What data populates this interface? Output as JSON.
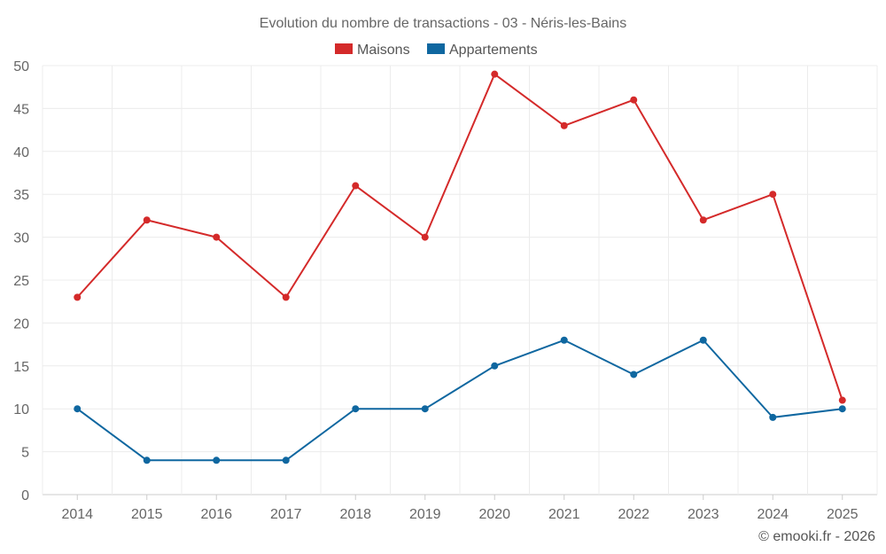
{
  "chart_data": {
    "type": "line",
    "title": "Evolution du nombre de transactions - 03 - Néris-les-Bains",
    "categories": [
      "2014",
      "2015",
      "2016",
      "2017",
      "2018",
      "2019",
      "2020",
      "2021",
      "2022",
      "2023",
      "2024",
      "2025"
    ],
    "series": [
      {
        "name": "Maisons",
        "color": "#d42a2a",
        "values": [
          23,
          32,
          30,
          23,
          36,
          30,
          49,
          43,
          46,
          32,
          35,
          11
        ]
      },
      {
        "name": "Appartements",
        "color": "#0f67a0",
        "values": [
          10,
          4,
          4,
          4,
          10,
          10,
          15,
          18,
          14,
          18,
          9,
          10
        ]
      }
    ],
    "xlabel": "",
    "ylabel": "",
    "ylim": [
      0,
      50
    ],
    "yticks": [
      "0",
      "5",
      "10",
      "15",
      "20",
      "25",
      "30",
      "35",
      "40",
      "45",
      "50"
    ],
    "grid": true,
    "legend_position": "top-center"
  },
  "footer": {
    "copyright": "© emooki.fr - 2026"
  }
}
